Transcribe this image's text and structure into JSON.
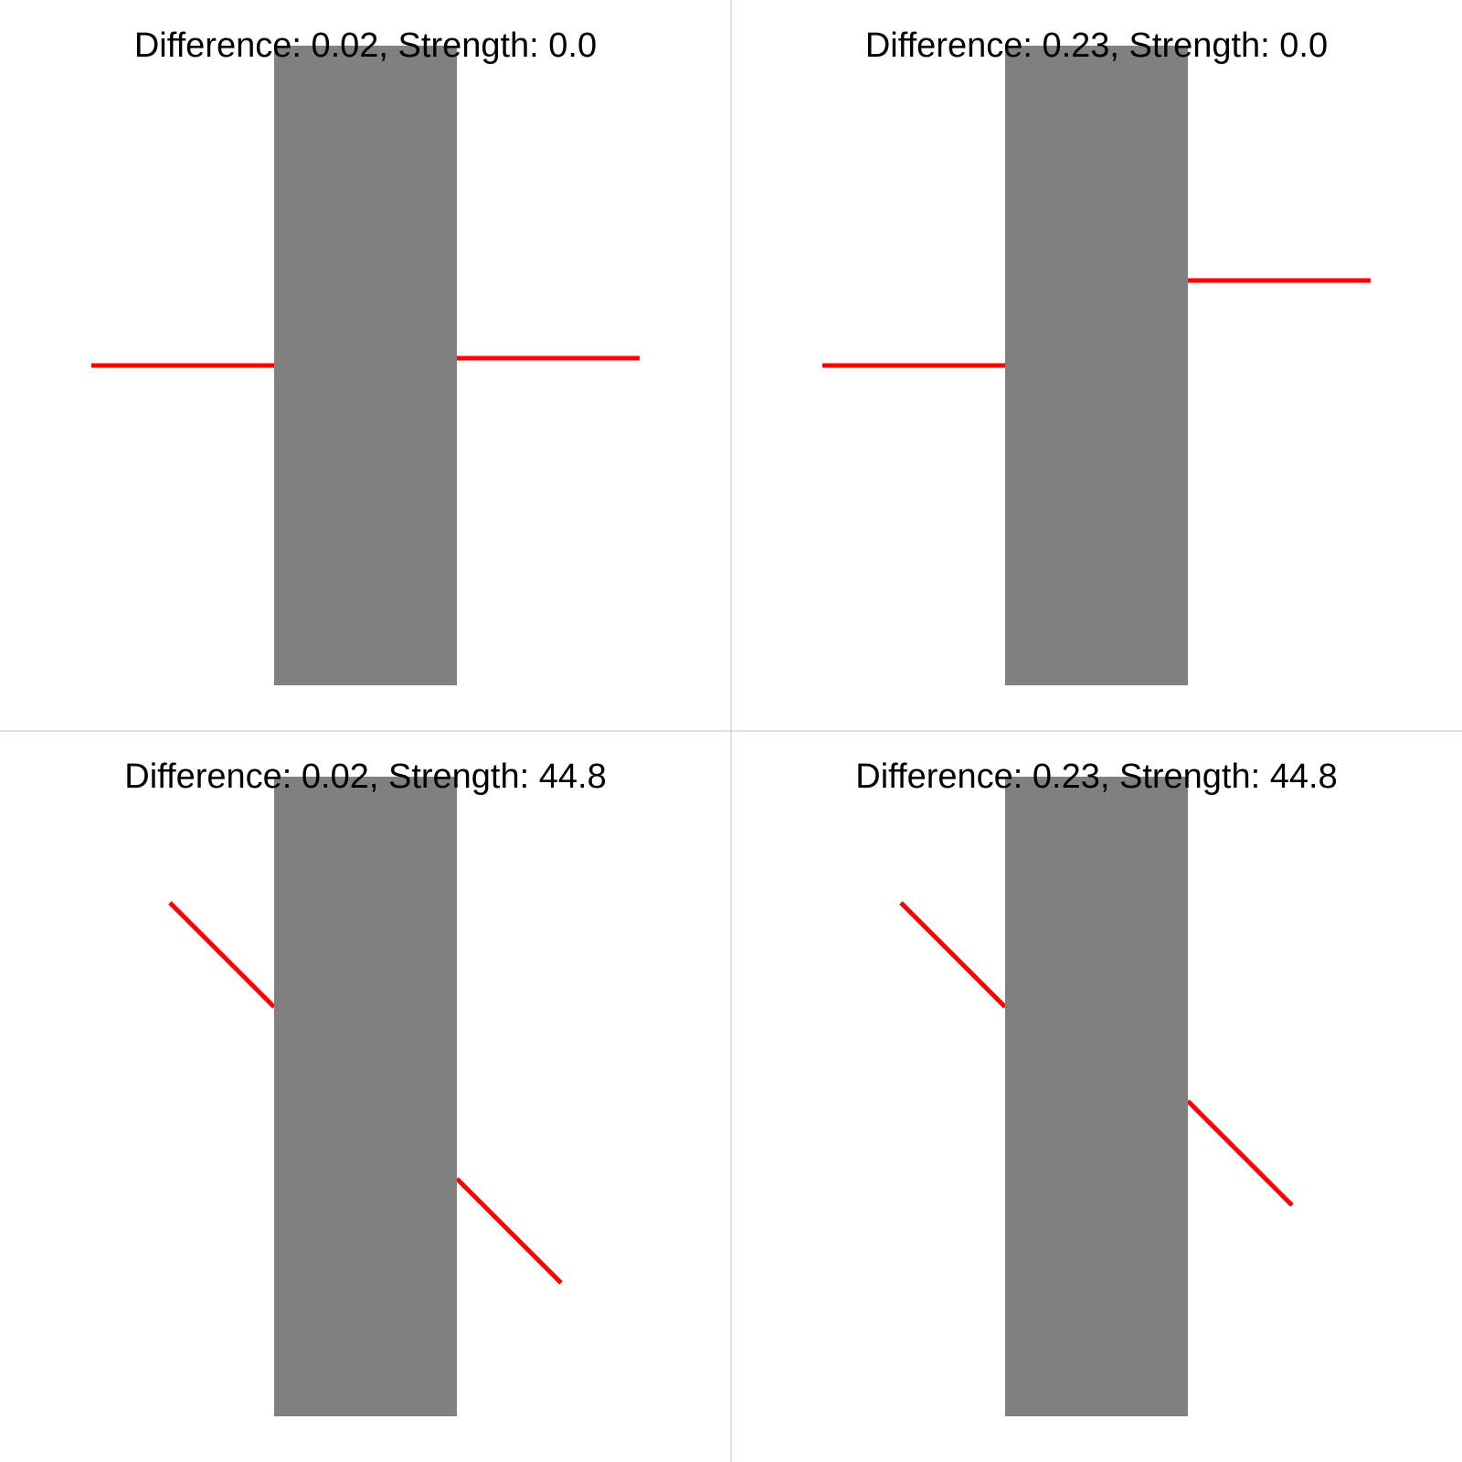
{
  "colors": {
    "background": "#ffffff",
    "occluder": "#808080",
    "line": "#ff0000",
    "divider": "#c0c0c0",
    "text": "#000000"
  },
  "panels": [
    {
      "id": "top-left",
      "title": "Difference: 0.02, Strength: 0.0",
      "difference": 0.02,
      "strength": 0.0
    },
    {
      "id": "top-right",
      "title": "Difference: 0.23, Strength: 0.0",
      "difference": 0.23,
      "strength": 0.0
    },
    {
      "id": "bottom-left",
      "title": "Difference: 0.02, Strength: 44.8",
      "difference": 0.02,
      "strength": 44.8
    },
    {
      "id": "bottom-right",
      "title": "Difference: 0.23, Strength: 44.8",
      "difference": 0.23,
      "strength": 44.8
    }
  ]
}
